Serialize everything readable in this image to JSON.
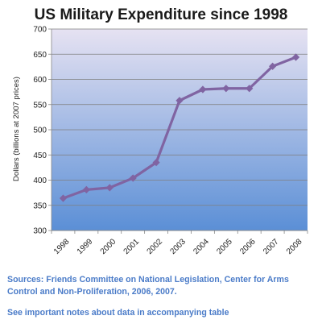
{
  "chart_data": {
    "type": "line",
    "title": "US Military Expenditure since 1998",
    "ylabel": "Dollars (billions at 2007 prices)",
    "xlabel": "",
    "categories": [
      "1998",
      "1999",
      "2000",
      "2001",
      "2002",
      "2003",
      "2004",
      "2005",
      "2006",
      "2007",
      "2008"
    ],
    "series": [
      {
        "values": [
          364,
          381,
          385,
          404,
          435,
          558,
          580,
          582,
          582,
          626,
          644
        ]
      }
    ],
    "ylim": [
      300,
      700
    ],
    "yticks": [
      300,
      350,
      400,
      450,
      500,
      550,
      600,
      650,
      700
    ],
    "grid": true,
    "legend": "none",
    "colors": {
      "line": "#8064a2",
      "plot_top": "#e6e2f2",
      "plot_bottom": "#5b8fd6",
      "grid": "#7f7f7f"
    }
  },
  "notes": {
    "sources": "Sources: Friends Committee on National Legislation, Center for Arms Control and Non-Proliferation, 2006, 2007.",
    "data_note": "See important notes about data in accompanying table"
  }
}
